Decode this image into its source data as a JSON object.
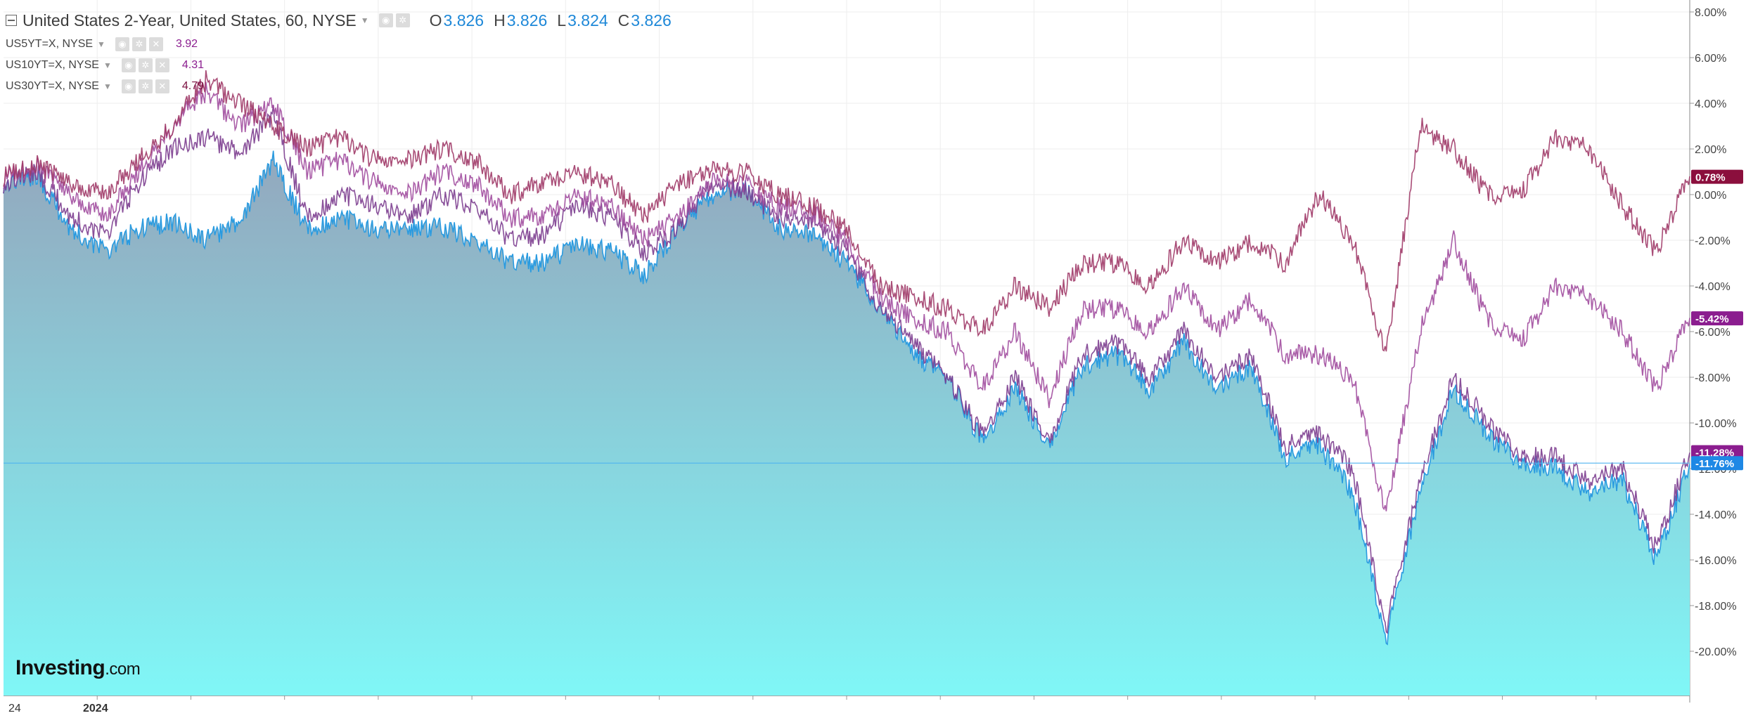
{
  "legend": {
    "main": {
      "title": "United States 2-Year, United States, 60, NYSE",
      "o_label": "O",
      "o": "3.826",
      "h_label": "H",
      "h": "3.826",
      "l_label": "L",
      "l": "3.824",
      "c_label": "C",
      "c": "3.826"
    },
    "series": [
      {
        "name": "US5YT=X, NYSE",
        "value": "3.92",
        "color": "#8b1d8f"
      },
      {
        "name": "US10YT=X, NYSE",
        "value": "4.31",
        "color": "#8b1d8f"
      },
      {
        "name": "US30YT=X, NYSE",
        "value": "4.79",
        "color": "#7a0f3f"
      }
    ]
  },
  "logo": {
    "brand": "Investing",
    "suffix": ".com"
  },
  "x_labels": [
    {
      "text": "24",
      "bold": false
    },
    {
      "text": "2024",
      "bold": true
    }
  ],
  "colors": {
    "us2y": "#2a9be0",
    "us5y": "#7c3d8f",
    "us10y": "#a14d9e",
    "us30y": "#a03a68",
    "area_top": "#93a7bd",
    "area_bottom": "#80f7f7",
    "tag_us30y": "#8b0f3d",
    "tag_us10y": "#8b1d8f",
    "tag_us5y": "#8b1d8f",
    "tag_us2y": "#1e88e5",
    "grid": "#eeeeee",
    "axis_text": "#444444"
  },
  "chart_data": {
    "type": "line",
    "y_axis": {
      "unit": "%",
      "ticks": [
        "8.00%",
        "6.00%",
        "4.00%",
        "2.00%",
        "0.00%",
        "-2.00%",
        "-4.00%",
        "-6.00%",
        "-8.00%",
        "-10.00%",
        "-12.00%",
        "-14.00%",
        "-16.00%",
        "-18.00%",
        "-20.00%"
      ],
      "tick_values": [
        8,
        6,
        4,
        2,
        0,
        -2,
        -4,
        -6,
        -8,
        -10,
        -12,
        -14,
        -16,
        -18,
        -20
      ],
      "ylim": [
        -21.5,
        8.5
      ],
      "position": "right"
    },
    "grid": true,
    "baseline": -11.76,
    "last_value_tags": [
      {
        "series": "us30y",
        "value": 0.78,
        "text": "0.78%"
      },
      {
        "series": "us10y",
        "value": -5.42,
        "text": "-5.42%"
      },
      {
        "series": "us5y",
        "value": -11.28,
        "text": "-11.28%"
      },
      {
        "series": "us2y",
        "value": -11.76,
        "text": "-11.76%"
      }
    ],
    "x": [
      0,
      2,
      4,
      6,
      8,
      10,
      12,
      14,
      16,
      18,
      20,
      22,
      24,
      26,
      28,
      30,
      32,
      34,
      36,
      38,
      40,
      42,
      44,
      46,
      48,
      50,
      52,
      54,
      56,
      58,
      60,
      62,
      64,
      66,
      68,
      70,
      72,
      74,
      76,
      78,
      80,
      82,
      84,
      86,
      88,
      90,
      92,
      94,
      96,
      98,
      100
    ],
    "series": [
      {
        "key": "us2y",
        "name": "United States 2-Year",
        "style": "area",
        "values": [
          0.5,
          0.8,
          -1.5,
          -2.5,
          -1.5,
          -1.2,
          -2,
          -1.2,
          1.5,
          -1.5,
          -1,
          -1.6,
          -1.5,
          -1.4,
          -2,
          -3,
          -3,
          -2.2,
          -2.5,
          -3.5,
          -1.5,
          0,
          0.3,
          -1.5,
          -1.8,
          -3,
          -5,
          -7,
          -8,
          -10.8,
          -8.5,
          -11,
          -7.5,
          -7,
          -8.5,
          -6.5,
          -8.5,
          -7.5,
          -11.5,
          -11,
          -13,
          -19.5,
          -13,
          -8.5,
          -10.5,
          -11.8,
          -12,
          -13,
          -12.5,
          -16,
          -11.8
        ]
      },
      {
        "key": "us5y",
        "name": "US5YT=X",
        "style": "line",
        "values": [
          0.5,
          1,
          -1,
          -1.8,
          0.5,
          2,
          2.5,
          1.8,
          3.5,
          -1,
          0,
          -0.5,
          -1,
          0,
          -0.5,
          -2,
          -1.8,
          -0.5,
          -1,
          -2.5,
          -1.5,
          0.5,
          0.2,
          -1,
          -1.2,
          -2.5,
          -5,
          -6.5,
          -8,
          -10.5,
          -8,
          -10.8,
          -7,
          -6.5,
          -8,
          -6,
          -8,
          -7,
          -11,
          -10.5,
          -12,
          -19,
          -12.5,
          -8,
          -10,
          -11.5,
          -11.5,
          -12.5,
          -12,
          -15.5,
          -11.3
        ]
      },
      {
        "key": "us10y",
        "name": "US10YT=X",
        "style": "line",
        "values": [
          0.7,
          1.2,
          0,
          -1,
          1,
          3,
          4.5,
          3,
          4,
          1,
          1.5,
          0.5,
          0,
          1,
          0.5,
          -1,
          -1,
          0,
          -0.5,
          -2,
          -1,
          0.5,
          0.5,
          -0.5,
          -0.8,
          -2,
          -4.5,
          -5.5,
          -6,
          -8.5,
          -6,
          -9,
          -5,
          -5,
          -6,
          -4,
          -6,
          -4.5,
          -7,
          -7,
          -8,
          -14,
          -6,
          -2,
          -5.5,
          -6.5,
          -4,
          -4.5,
          -6,
          -8.5,
          -5.4
        ]
      },
      {
        "key": "us30y",
        "name": "US30YT=X",
        "style": "line",
        "values": [
          0.8,
          1.3,
          0.5,
          0,
          1.5,
          3,
          5,
          4,
          3,
          2,
          2.5,
          1.5,
          1.5,
          2,
          1.5,
          0,
          0.5,
          1,
          0.5,
          -1,
          0.5,
          1,
          1,
          0,
          -0.5,
          -1.5,
          -4,
          -4.5,
          -5,
          -6,
          -4,
          -5,
          -3,
          -3,
          -4,
          -2,
          -3,
          -2,
          -3,
          0,
          -2,
          -7,
          3,
          2,
          0,
          0,
          2.5,
          2,
          -0.5,
          -2.5,
          0.8
        ]
      }
    ]
  }
}
